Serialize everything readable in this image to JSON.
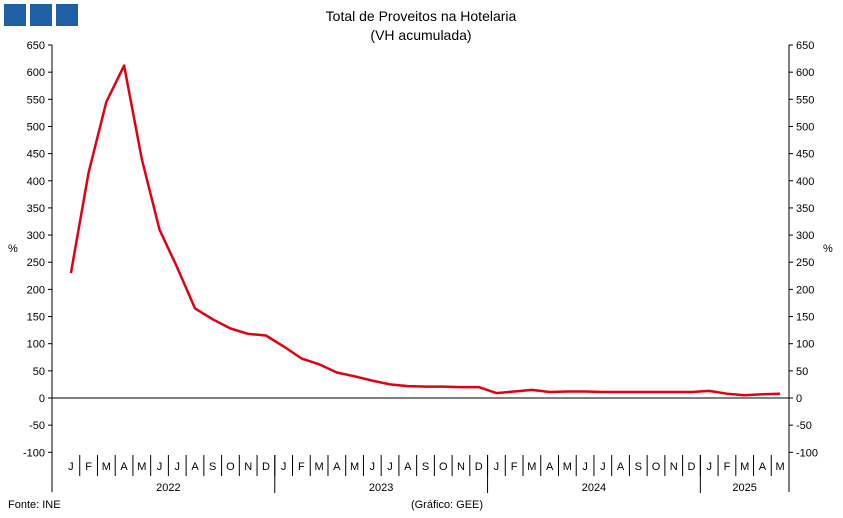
{
  "brand": {
    "logo_blocks": 3,
    "color": "#1f5fa6"
  },
  "footer": {
    "source": "Fonte: INE",
    "credit": "(Gráfico: GEE)"
  },
  "chart_data": {
    "type": "line",
    "title": "Total de Proveitos na Hotelaria",
    "subtitle": "(VH acumulada)",
    "ylabel_left": "%",
    "ylabel_right": "%",
    "ylim": [
      -100,
      650
    ],
    "yticks": [
      -100,
      -50,
      0,
      50,
      100,
      150,
      200,
      250,
      300,
      350,
      400,
      450,
      500,
      550,
      600,
      650
    ],
    "grid": false,
    "line_color": "#e0000f",
    "months": [
      "J",
      "F",
      "M",
      "A",
      "M",
      "J",
      "J",
      "A",
      "S",
      "O",
      "N",
      "D",
      "J",
      "F",
      "M",
      "A",
      "M",
      "J",
      "J",
      "A",
      "S",
      "O",
      "N",
      "D",
      "J",
      "F",
      "M",
      "A",
      "M",
      "J",
      "J",
      "A",
      "S",
      "O",
      "N",
      "D",
      "J",
      "F",
      "M",
      "A",
      "M"
    ],
    "years": [
      {
        "label": "2022",
        "months": 12
      },
      {
        "label": "2023",
        "months": 12
      },
      {
        "label": "2024",
        "months": 12
      },
      {
        "label": "2025",
        "months": 5
      }
    ],
    "series": [
      {
        "values": [
          230,
          415,
          545,
          612,
          440,
          310,
          240,
          165,
          145,
          128,
          118,
          115,
          95,
          73,
          62,
          47,
          40,
          32,
          25,
          22,
          21,
          21,
          20,
          20,
          9,
          12,
          15,
          11,
          12,
          12,
          11,
          11,
          11,
          11,
          11,
          11,
          13,
          8,
          5,
          7,
          8
        ]
      }
    ]
  }
}
